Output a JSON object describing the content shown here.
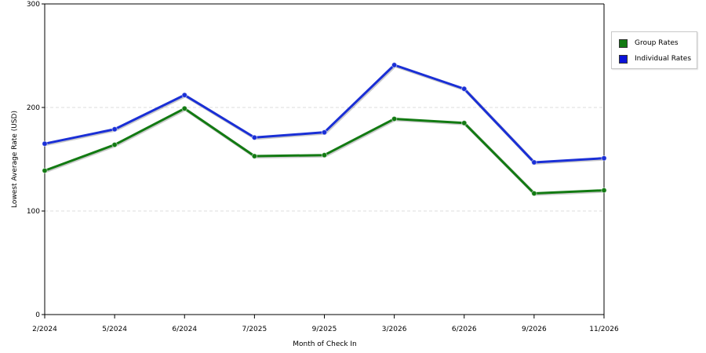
{
  "chart_data": {
    "type": "line",
    "xlabel": "Month of Check In",
    "ylabel": "Lowest Average Rate (USD)",
    "categories": [
      "2/2024",
      "5/2024",
      "6/2024",
      "7/2025",
      "9/2025",
      "3/2026",
      "6/2026",
      "9/2026",
      "11/2026"
    ],
    "ylim": [
      0,
      300
    ],
    "yticks": [
      "0",
      "100",
      "200",
      "300"
    ],
    "grid": true,
    "legend_position": "right",
    "series": [
      {
        "name": "Group Rates",
        "color": "#127a12",
        "values": [
          139,
          164,
          199,
          153,
          154,
          189,
          185,
          117,
          120
        ]
      },
      {
        "name": "Individual Rates",
        "color": "#1a2fd6",
        "values": [
          165,
          179,
          212,
          171,
          176,
          241,
          218,
          147,
          151
        ]
      }
    ]
  },
  "legend": {
    "items": [
      {
        "label": "Group Rates",
        "color": "#127a12"
      },
      {
        "label": "Individual Rates",
        "color": "#0b13d9"
      }
    ]
  }
}
